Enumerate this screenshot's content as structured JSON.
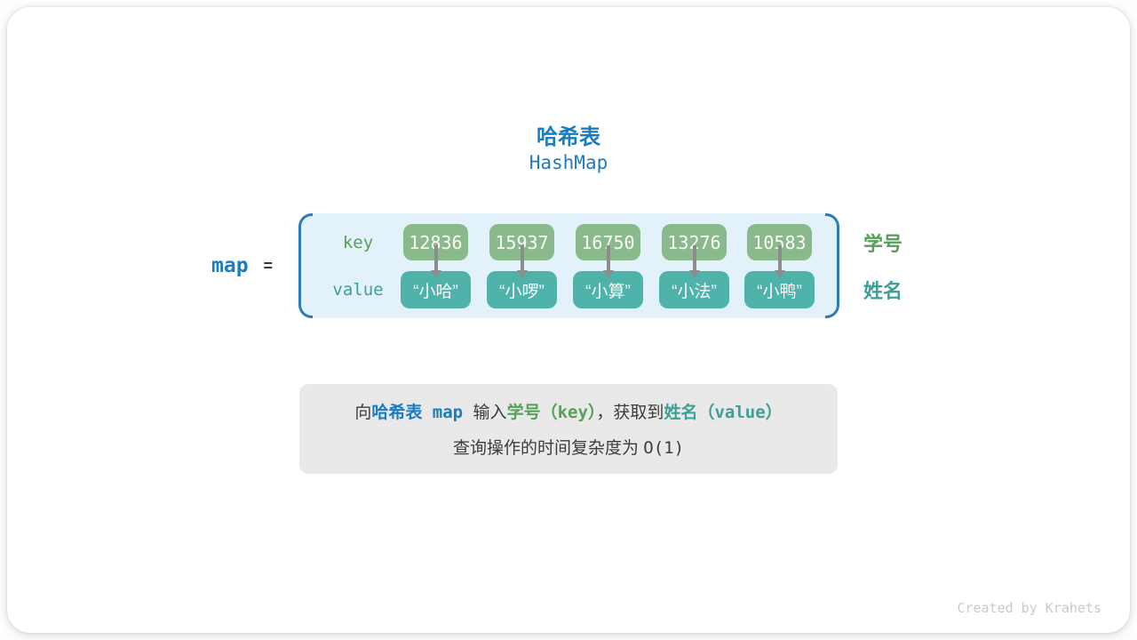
{
  "title": {
    "zh": "哈希表",
    "en": "HashMap"
  },
  "expression": {
    "var": "map",
    "equals": "="
  },
  "table": {
    "key_label": "key",
    "value_label": "value",
    "side_labels": {
      "keys": "学号",
      "values": "姓名"
    },
    "entries": [
      {
        "key": "12836",
        "value": "“小哈”"
      },
      {
        "key": "15937",
        "value": "“小啰”"
      },
      {
        "key": "16750",
        "value": "“小算”"
      },
      {
        "key": "13276",
        "value": "“小法”"
      },
      {
        "key": "10583",
        "value": "“小鸭”"
      }
    ]
  },
  "caption": {
    "line1": [
      {
        "text": "向"
      },
      {
        "text": "哈希表"
      },
      {
        "text": " map "
      },
      {
        "text": "输入"
      },
      {
        "text": "学号（"
      },
      {
        "text": "key"
      },
      {
        "text": "）"
      },
      {
        "text": "，获取到"
      },
      {
        "text": "姓名（"
      },
      {
        "text": "value"
      },
      {
        "text": "）"
      }
    ],
    "line2": {
      "prefix": "查询操作的时间复杂度为 ",
      "complexity": "O(1)"
    }
  },
  "watermark": "Created by Krahets",
  "colors": {
    "accent_blue": "#1a7dc2",
    "key_box_green": "#8aba8b",
    "value_box_teal": "#4fb3ac",
    "key_text_green": "#56a058",
    "value_text_teal": "#3e9e98",
    "container_fill": "#e3f1fa",
    "container_border": "#2e7cb5",
    "caption_bg": "#e9e9e9",
    "arrow_gray": "#8c8c8c",
    "watermark_gray": "#c9c9c9"
  }
}
